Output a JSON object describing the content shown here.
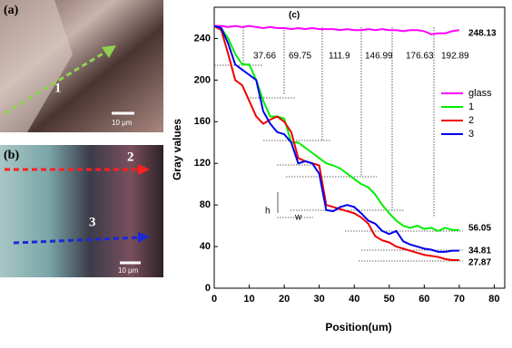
{
  "panel_a": {
    "label": "(a)",
    "arrow_label": "1",
    "scale_bar": "10 μm"
  },
  "panel_b": {
    "label": "(b)",
    "arrow_labels": [
      "2",
      "3"
    ],
    "scale_bar": "10 μm"
  },
  "chart_data": {
    "type": "line",
    "panel_label": "(c)",
    "x_label": "Position(um)",
    "y_label": "Gray values",
    "xlim": [
      0,
      83
    ],
    "ylim": [
      0,
      270
    ],
    "xticks": [
      0,
      10,
      20,
      30,
      40,
      50,
      60,
      70,
      80
    ],
    "yticks": [
      0,
      40,
      80,
      120,
      160,
      200,
      240
    ],
    "legend": "right",
    "annotations": [
      "37.66",
      "69.75",
      "111.9",
      "146.99",
      "176.63",
      "192.89",
      "248.13",
      "56.05",
      "34.81",
      "27.87",
      "h",
      "w"
    ],
    "x": [
      0,
      2,
      4,
      6,
      8,
      10,
      12,
      14,
      16,
      18,
      20,
      22,
      24,
      26,
      28,
      30,
      32,
      34,
      36,
      38,
      40,
      42,
      44,
      46,
      48,
      50,
      52,
      54,
      56,
      58,
      60,
      62,
      64,
      66,
      68,
      70
    ],
    "series": [
      {
        "name": "glass",
        "color": "#ff00ff",
        "values": [
          252,
          252,
          251,
          252,
          251,
          252,
          251,
          250,
          251,
          250,
          250,
          249,
          250,
          249,
          250,
          249,
          249,
          249,
          248,
          249,
          248,
          248,
          249,
          248,
          249,
          248,
          248,
          247,
          248,
          248,
          247,
          244,
          245,
          245,
          247,
          248
        ]
      },
      {
        "name": "1",
        "color": "#00ee00",
        "values": [
          252,
          250,
          240,
          225,
          215,
          215,
          200,
          180,
          165,
          165,
          163,
          140,
          140,
          135,
          130,
          125,
          120,
          118,
          115,
          110,
          105,
          100,
          97,
          90,
          80,
          72,
          65,
          60,
          58,
          60,
          57,
          58,
          55,
          58,
          56,
          56
        ]
      },
      {
        "name": "2",
        "color": "#ee0000",
        "values": [
          252,
          248,
          225,
          200,
          195,
          180,
          165,
          158,
          162,
          165,
          160,
          150,
          125,
          122,
          120,
          118,
          80,
          78,
          76,
          74,
          72,
          68,
          62,
          50,
          46,
          44,
          40,
          38,
          36,
          34,
          32,
          31,
          30,
          28,
          27,
          27
        ]
      },
      {
        "name": "3",
        "color": "#0000ee",
        "values": [
          252,
          250,
          235,
          215,
          210,
          205,
          200,
          170,
          158,
          150,
          148,
          140,
          120,
          122,
          120,
          110,
          75,
          74,
          78,
          80,
          78,
          72,
          65,
          62,
          55,
          52,
          55,
          45,
          42,
          40,
          38,
          37,
          35,
          35,
          36,
          36
        ]
      }
    ]
  }
}
